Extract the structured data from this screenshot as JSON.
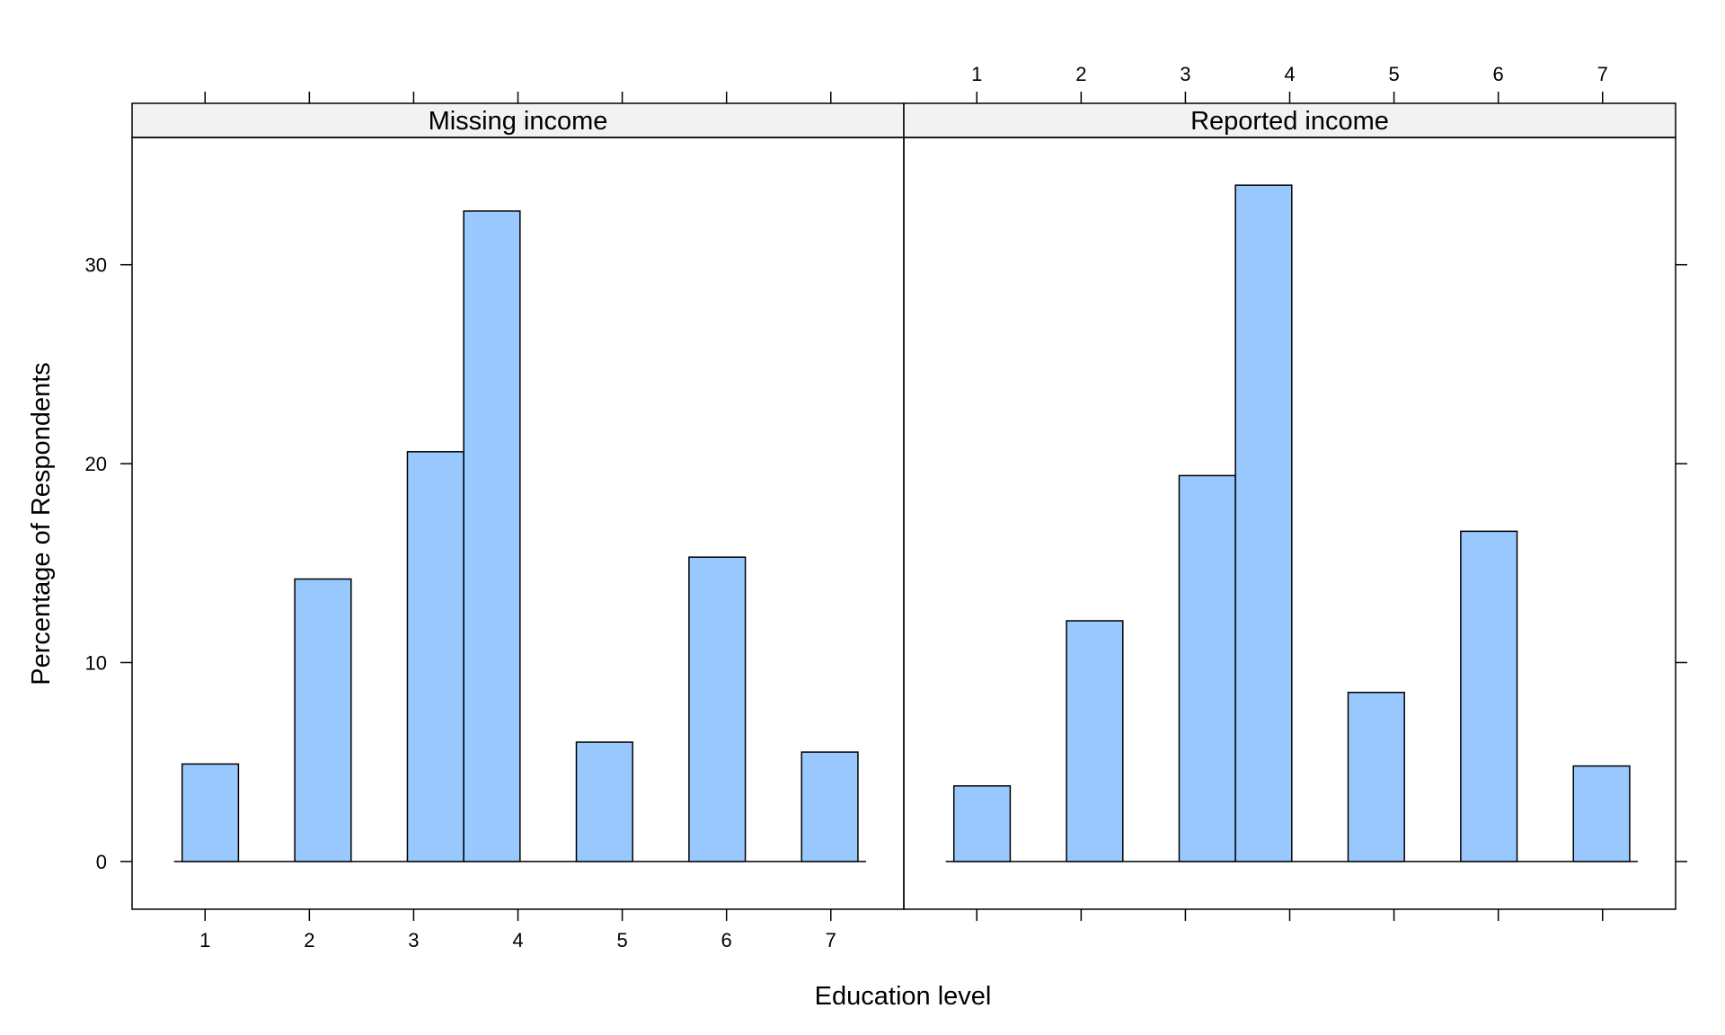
{
  "chart_data": {
    "type": "bar",
    "xlabel": "Education level",
    "ylabel": "Percentage of Respondents",
    "x_ticks": [
      "1",
      "2",
      "3",
      "4",
      "5",
      "6",
      "7"
    ],
    "y_ticks": [
      "0",
      "10",
      "20",
      "30"
    ],
    "ylim": [
      -2.4,
      36.4
    ],
    "xlim": [
      0.3,
      7.7
    ],
    "grid": false,
    "bar_color": "#99c8ff",
    "bar_edge_color": "#000000",
    "strip_color": "#f2f2f2",
    "panels": [
      {
        "name": "Missing income",
        "bars": [
          {
            "x_start": 0.78,
            "x_end": 1.32,
            "value": 4.9
          },
          {
            "x_start": 1.86,
            "x_end": 2.4,
            "value": 14.2
          },
          {
            "x_start": 2.94,
            "x_end": 3.48,
            "value": 20.6
          },
          {
            "x_start": 3.48,
            "x_end": 4.02,
            "value": 32.7
          },
          {
            "x_start": 4.56,
            "x_end": 5.1,
            "value": 6.0
          },
          {
            "x_start": 5.64,
            "x_end": 6.18,
            "value": 15.3
          },
          {
            "x_start": 6.72,
            "x_end": 7.26,
            "value": 5.5
          }
        ]
      },
      {
        "name": "Reported income",
        "bars": [
          {
            "x_start": 0.78,
            "x_end": 1.32,
            "value": 3.8
          },
          {
            "x_start": 1.86,
            "x_end": 2.4,
            "value": 12.1
          },
          {
            "x_start": 2.94,
            "x_end": 3.48,
            "value": 19.4
          },
          {
            "x_start": 3.48,
            "x_end": 4.02,
            "value": 34.0
          },
          {
            "x_start": 4.56,
            "x_end": 5.1,
            "value": 8.5
          },
          {
            "x_start": 5.64,
            "x_end": 6.18,
            "value": 16.6
          },
          {
            "x_start": 6.72,
            "x_end": 7.26,
            "value": 4.8
          }
        ]
      }
    ]
  }
}
